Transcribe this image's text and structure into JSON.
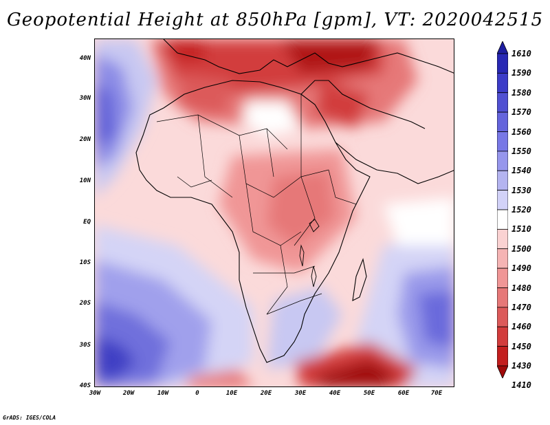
{
  "title": "Geopotential Height at 850hPa [gpm], VT: 2020042515",
  "credit": "GrADS: IGES/COLA",
  "lat_labels": [
    "40N",
    "30N",
    "20N",
    "10N",
    "EQ",
    "10S",
    "20S",
    "30S",
    "40S"
  ],
  "lon_labels": [
    "30W",
    "20W",
    "10W",
    "0",
    "10E",
    "20E",
    "30E",
    "40E",
    "50E",
    "60E",
    "70E"
  ],
  "colorbar": {
    "labels": [
      "1610",
      "1590",
      "1580",
      "1570",
      "1560",
      "1550",
      "1540",
      "1530",
      "1520",
      "1510",
      "1500",
      "1490",
      "1480",
      "1470",
      "1460",
      "1450",
      "1430",
      "1410"
    ],
    "colors": [
      "#1e1ea0",
      "#2828b4",
      "#3c3cc8",
      "#5050d2",
      "#6464dc",
      "#7878e6",
      "#9696ec",
      "#b4b4f0",
      "#d2d2f8",
      "#ffffff",
      "#fad2d2",
      "#f5b4b4",
      "#f09696",
      "#e67878",
      "#dc5a5a",
      "#d23c3c",
      "#c31e1e",
      "#a00a0a"
    ]
  }
}
